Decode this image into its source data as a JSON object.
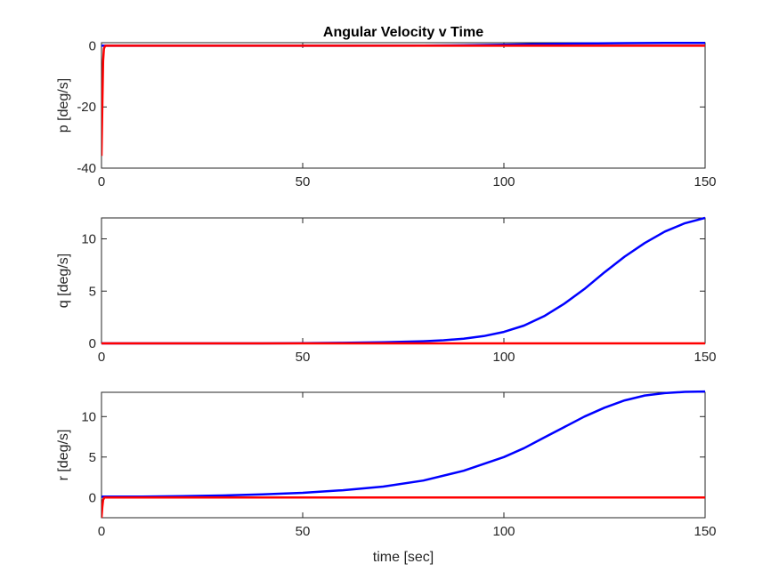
{
  "chart_data": [
    {
      "type": "line",
      "title": "Angular Velocity v Time",
      "xlabel": "",
      "ylabel": "p [deg/s]",
      "xlim": [
        0,
        150
      ],
      "ylim": [
        -40,
        1
      ],
      "xticks": [
        0,
        50,
        100,
        150
      ],
      "yticks": [
        -40,
        -20,
        0
      ],
      "grid": false,
      "series": [
        {
          "color": "#0000ff",
          "x": [
            0,
            0.5,
            1,
            5,
            20,
            40,
            60,
            80,
            90,
            100,
            110,
            120,
            130,
            140,
            150
          ],
          "y": [
            0,
            0,
            0,
            0,
            0,
            0,
            0,
            0.05,
            0.15,
            0.35,
            0.55,
            0.75,
            0.85,
            0.9,
            0.9
          ]
        },
        {
          "color": "#ff0000",
          "x": [
            0,
            0.2,
            0.4,
            0.6,
            0.8,
            1,
            2,
            150
          ],
          "y": [
            -36,
            -20,
            -5,
            -1,
            -0.3,
            0,
            0,
            0
          ]
        }
      ]
    },
    {
      "type": "line",
      "title": "",
      "xlabel": "",
      "ylabel": "q [deg/s]",
      "xlim": [
        0,
        150
      ],
      "ylim": [
        0,
        12
      ],
      "xticks": [
        0,
        50,
        100,
        150
      ],
      "yticks": [
        0,
        5,
        10
      ],
      "grid": false,
      "series": [
        {
          "color": "#0000ff",
          "x": [
            0,
            20,
            40,
            50,
            60,
            70,
            80,
            85,
            90,
            95,
            100,
            105,
            110,
            115,
            120,
            125,
            130,
            135,
            140,
            145,
            150
          ],
          "y": [
            0,
            0,
            0,
            0.02,
            0.05,
            0.1,
            0.2,
            0.3,
            0.45,
            0.7,
            1.1,
            1.7,
            2.6,
            3.8,
            5.2,
            6.8,
            8.3,
            9.6,
            10.7,
            11.5,
            12.0
          ]
        },
        {
          "color": "#ff0000",
          "x": [
            0,
            150
          ],
          "y": [
            0,
            0
          ]
        }
      ]
    },
    {
      "type": "line",
      "title": "",
      "xlabel": "time [sec]",
      "ylabel": "r [deg/s]",
      "xlim": [
        0,
        150
      ],
      "ylim": [
        -2.5,
        13
      ],
      "xticks": [
        0,
        50,
        100,
        150
      ],
      "yticks": [
        0,
        5,
        10
      ],
      "grid": false,
      "series": [
        {
          "color": "#0000ff",
          "x": [
            0,
            10,
            20,
            30,
            40,
            50,
            60,
            70,
            80,
            90,
            100,
            105,
            110,
            115,
            120,
            125,
            130,
            135,
            140,
            145,
            150
          ],
          "y": [
            0.1,
            0.12,
            0.17,
            0.25,
            0.38,
            0.58,
            0.9,
            1.35,
            2.1,
            3.3,
            5.0,
            6.1,
            7.4,
            8.7,
            10.0,
            11.1,
            12.0,
            12.6,
            12.9,
            13.05,
            13.1
          ]
        },
        {
          "color": "#ff0000",
          "x": [
            0,
            0.2,
            0.4,
            0.7,
            1,
            150
          ],
          "y": [
            -2.5,
            -1.2,
            -0.3,
            0,
            0,
            0
          ]
        }
      ]
    }
  ]
}
